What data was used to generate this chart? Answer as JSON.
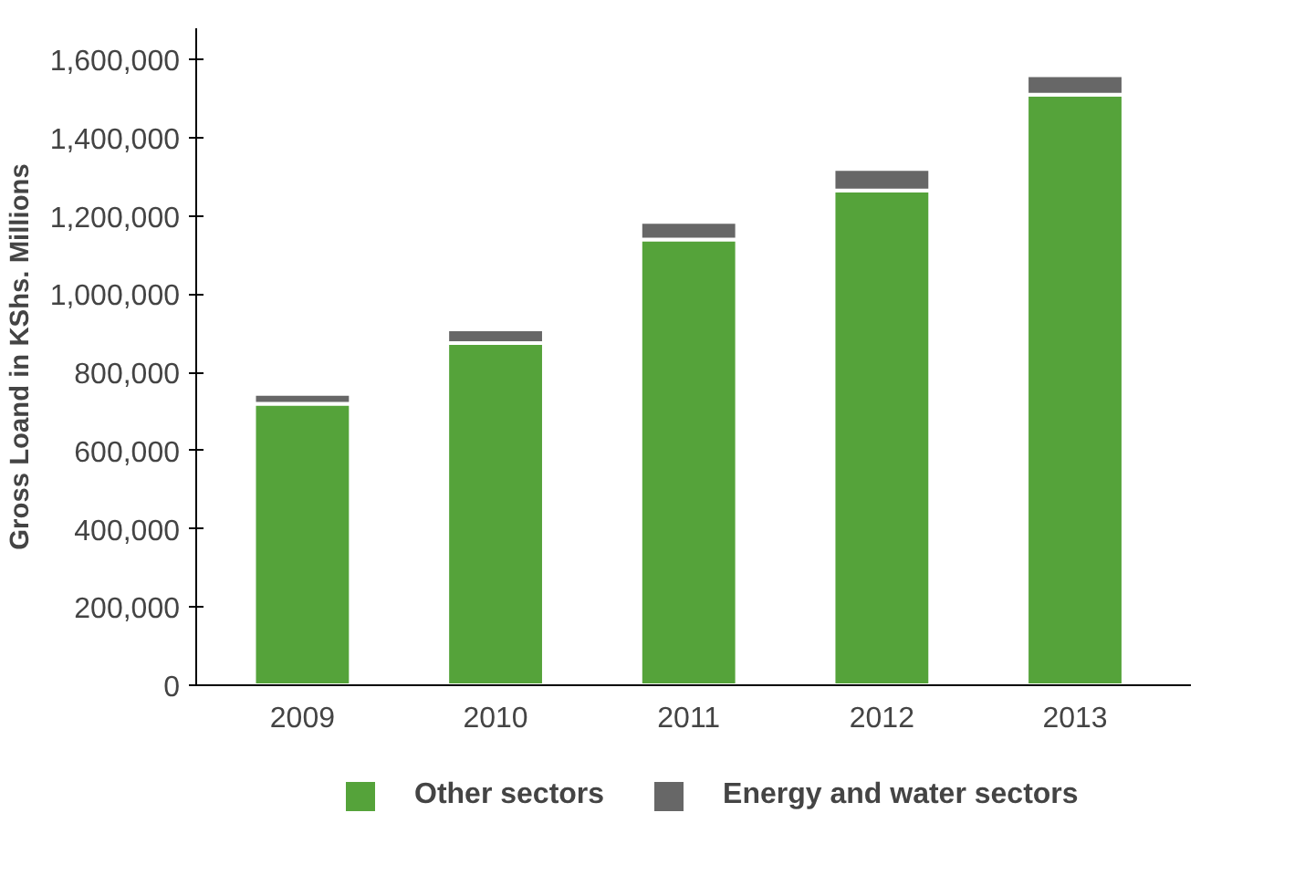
{
  "chart_data": {
    "type": "bar",
    "stacked": true,
    "ylabel": "Gross Loand in KShs. Millions",
    "categories": [
      "2009",
      "2010",
      "2011",
      "2012",
      "2013"
    ],
    "series": [
      {
        "name": "Other sectors",
        "color": "#55a33a",
        "values": [
          720000,
          875000,
          1140000,
          1265000,
          1510000
        ]
      },
      {
        "name": "Energy and water sectors",
        "color": "#676767",
        "values": [
          25000,
          35000,
          45000,
          55000,
          50000
        ]
      }
    ],
    "ylim": [
      0,
      1680000
    ],
    "yticks": [
      {
        "value": 0,
        "label": "0"
      },
      {
        "value": 200000,
        "label": "200,000"
      },
      {
        "value": 400000,
        "label": "400,000"
      },
      {
        "value": 600000,
        "label": "600,000"
      },
      {
        "value": 800000,
        "label": "800,000"
      },
      {
        "value": 1000000,
        "label": "1,000,000"
      },
      {
        "value": 1200000,
        "label": "1,200,000"
      },
      {
        "value": 1400000,
        "label": "1,400,000"
      },
      {
        "value": 1600000,
        "label": "1,600,000"
      }
    ],
    "grid": false,
    "legend": "bottom"
  }
}
